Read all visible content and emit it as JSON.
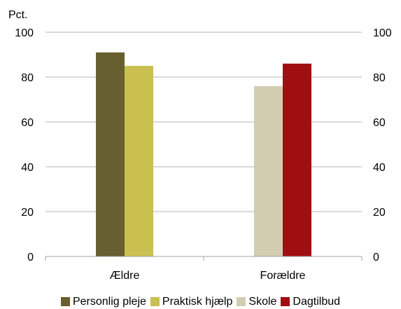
{
  "chart_data": {
    "type": "bar",
    "unit_label": "Pct.",
    "title": "",
    "xlabel": "",
    "ylabel": "",
    "ylim": [
      0,
      100
    ],
    "yticks": [
      0,
      20,
      40,
      60,
      80,
      100
    ],
    "grid": true,
    "legend_position": "bottom",
    "categories": [
      "Ældre",
      "Forældre"
    ],
    "series": [
      {
        "name": "Personlig pleje",
        "color": "#675f2f",
        "values": [
          91,
          null
        ]
      },
      {
        "name": "Praktisk hjælp",
        "color": "#c9c050",
        "values": [
          85,
          null
        ]
      },
      {
        "name": "Skole",
        "color": "#d2cdb0",
        "values": [
          null,
          76
        ]
      },
      {
        "name": "Dagtilbud",
        "color": "#a00e13",
        "values": [
          null,
          86
        ]
      }
    ]
  }
}
